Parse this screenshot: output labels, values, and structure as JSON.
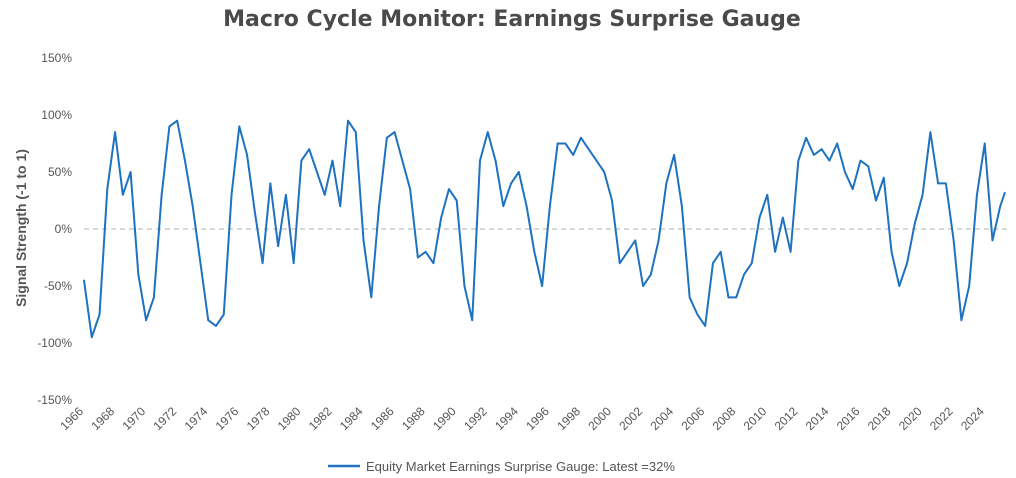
{
  "chart_data": {
    "type": "line",
    "title": "Macro Cycle Monitor: Earnings Surprise Gauge",
    "xlabel": "",
    "ylabel": "Signal Strength (-1 to 1)",
    "xlim": [
      1966,
      2025.5
    ],
    "ylim": [
      -1.5,
      1.5
    ],
    "y_ticks": [
      -1.5,
      -1.0,
      -0.5,
      0,
      0.5,
      1.0,
      1.5
    ],
    "y_tick_labels": [
      "-150%",
      "-100%",
      "-50%",
      "0%",
      "50%",
      "100%",
      "150%"
    ],
    "x_ticks": [
      1966,
      1968,
      1970,
      1972,
      1974,
      1976,
      1978,
      1980,
      1982,
      1984,
      1986,
      1988,
      1990,
      1992,
      1994,
      1996,
      1998,
      2000,
      2002,
      2004,
      2006,
      2008,
      2010,
      2012,
      2014,
      2016,
      2018,
      2020,
      2022,
      2024
    ],
    "x_tick_labels": [
      "1966",
      "1968",
      "1970",
      "1972",
      "1974",
      "1976",
      "1978",
      "1980",
      "1982",
      "1984",
      "1986",
      "1988",
      "1990",
      "1992",
      "1994",
      "1996",
      "1998",
      "2000",
      "2002",
      "2004",
      "2006",
      "2008",
      "2010",
      "2012",
      "2014",
      "2016",
      "2018",
      "2020",
      "2022",
      "2024"
    ],
    "grid": false,
    "legend_position": "bottom",
    "series": [
      {
        "name": "Equity Market Earnings Surprise Gauge: Latest =32%",
        "color": "#1f72c0",
        "x": [
          1966.0,
          1966.5,
          1967.0,
          1967.5,
          1968.0,
          1968.5,
          1969.0,
          1969.5,
          1970.0,
          1970.5,
          1971.0,
          1971.5,
          1972.0,
          1972.5,
          1973.0,
          1973.5,
          1974.0,
          1974.5,
          1975.0,
          1975.5,
          1976.0,
          1976.5,
          1977.0,
          1977.5,
          1978.0,
          1978.5,
          1979.0,
          1979.5,
          1980.0,
          1980.5,
          1981.0,
          1981.5,
          1982.0,
          1982.5,
          1983.0,
          1983.5,
          1984.0,
          1984.5,
          1985.0,
          1985.5,
          1986.0,
          1986.5,
          1987.0,
          1987.5,
          1988.0,
          1988.5,
          1989.0,
          1989.5,
          1990.0,
          1990.5,
          1991.0,
          1991.5,
          1992.0,
          1992.5,
          1993.0,
          1993.5,
          1994.0,
          1994.5,
          1995.0,
          1995.5,
          1996.0,
          1996.5,
          1997.0,
          1997.5,
          1998.0,
          1998.5,
          1999.0,
          1999.5,
          2000.0,
          2000.5,
          2001.0,
          2001.5,
          2002.0,
          2002.5,
          2003.0,
          2003.5,
          2004.0,
          2004.5,
          2005.0,
          2005.5,
          2006.0,
          2006.5,
          2007.0,
          2007.5,
          2008.0,
          2008.5,
          2009.0,
          2009.5,
          2010.0,
          2010.5,
          2011.0,
          2011.5,
          2012.0,
          2012.5,
          2013.0,
          2013.5,
          2014.0,
          2014.5,
          2015.0,
          2015.5,
          2016.0,
          2016.5,
          2017.0,
          2017.5,
          2018.0,
          2018.5,
          2019.0,
          2019.5,
          2020.0,
          2020.5,
          2021.0,
          2021.5,
          2022.0,
          2022.5,
          2023.0,
          2023.5,
          2024.0,
          2024.5,
          2025.0,
          2025.3
        ],
        "values": [
          -0.45,
          -0.95,
          -0.75,
          0.35,
          0.85,
          0.3,
          0.5,
          -0.4,
          -0.8,
          -0.6,
          0.3,
          0.9,
          0.95,
          0.6,
          0.2,
          -0.3,
          -0.8,
          -0.85,
          -0.75,
          0.3,
          0.9,
          0.65,
          0.15,
          -0.3,
          0.4,
          -0.15,
          0.3,
          -0.3,
          0.6,
          0.7,
          0.5,
          0.3,
          0.6,
          0.2,
          0.95,
          0.85,
          -0.1,
          -0.6,
          0.2,
          0.8,
          0.85,
          0.6,
          0.35,
          -0.25,
          -0.2,
          -0.3,
          0.1,
          0.35,
          0.25,
          -0.5,
          -0.8,
          0.6,
          0.85,
          0.6,
          0.2,
          0.4,
          0.5,
          0.2,
          -0.2,
          -0.5,
          0.2,
          0.75,
          0.75,
          0.65,
          0.8,
          0.7,
          0.6,
          0.5,
          0.25,
          -0.3,
          -0.2,
          -0.1,
          -0.5,
          -0.4,
          -0.1,
          0.4,
          0.65,
          0.2,
          -0.6,
          -0.75,
          -0.85,
          -0.3,
          -0.2,
          -0.6,
          -0.6,
          -0.4,
          -0.3,
          0.1,
          0.3,
          -0.2,
          0.1,
          -0.2,
          0.6,
          0.8,
          0.65,
          0.7,
          0.6,
          0.75,
          0.5,
          0.35,
          0.6,
          0.55,
          0.25,
          0.45,
          -0.2,
          -0.5,
          -0.3,
          0.05,
          0.3,
          0.85,
          0.4,
          0.4,
          -0.1,
          -0.8,
          -0.5,
          0.3,
          0.75,
          -0.1,
          0.2,
          0.32
        ]
      }
    ]
  }
}
